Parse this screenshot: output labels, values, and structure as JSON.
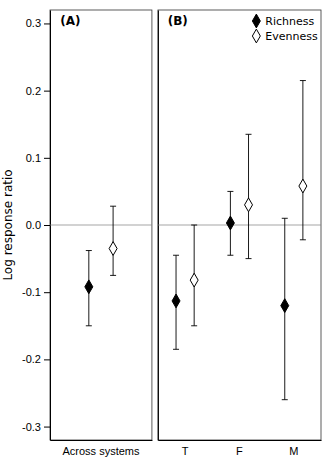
{
  "chart_data": [
    {
      "type": "errorbar",
      "title": "(A)",
      "y_label": "Log response ratio",
      "categories": [
        "Across systems"
      ],
      "series": [
        {
          "color": "black",
          "marker": "diamond",
          "values": [
            -0.092
          ],
          "ci_lower": [
            -0.15
          ],
          "ci_upper": [
            -0.038
          ]
        },
        {
          "color": "white",
          "marker": "diamond",
          "values": [
            -0.035
          ],
          "ci_lower": [
            -0.075
          ],
          "ci_upper": [
            0.028
          ]
        }
      ],
      "reference_lines": [
        0
      ],
      "ylim": [
        -0.32,
        0.32
      ],
      "yticks": [
        -0.3,
        -0.2,
        -0.1,
        {
          "value": 0.0,
          "label": "0.0"
        },
        0.1,
        0.2,
        0.3
      ],
      "grid": false
    },
    {
      "type": "errorbar",
      "title": "(B)",
      "categories": [
        "T",
        "F",
        "M"
      ],
      "series": [
        {
          "name": "Richness",
          "color": "black",
          "marker": "diamond",
          "values": [
            -0.113,
            0.003,
            -0.12
          ],
          "ci_lower": [
            -0.185,
            -0.045,
            -0.26
          ],
          "ci_upper": [
            -0.045,
            0.05,
            0.01
          ]
        },
        {
          "name": "Evenness",
          "color": "white",
          "marker": "diamond",
          "values": [
            -0.082,
            0.03,
            0.058
          ],
          "ci_lower": [
            -0.15,
            -0.05,
            -0.022
          ],
          "ci_upper": [
            0.0,
            0.135,
            0.215
          ]
        }
      ],
      "reference_lines": [
        0
      ],
      "ylim": [
        -0.32,
        0.32
      ],
      "tick_labels": "x",
      "legend": "upper right",
      "grid": false
    }
  ]
}
